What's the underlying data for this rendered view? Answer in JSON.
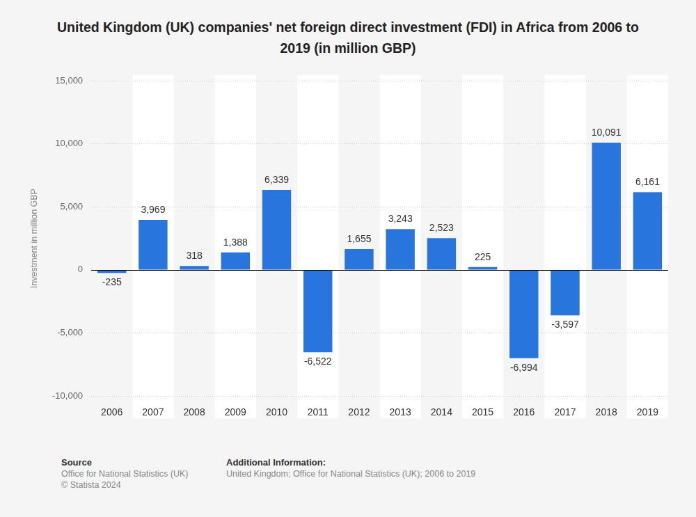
{
  "chart_data": {
    "type": "bar",
    "title": "United Kingdom (UK) companies' net foreign direct investment (FDI) in Africa from 2006 to 2019 (in million GBP)",
    "y_label": "Investment in million GBP",
    "categories": [
      "2006",
      "2007",
      "2008",
      "2009",
      "2010",
      "2011",
      "2012",
      "2013",
      "2014",
      "2015",
      "2016",
      "2017",
      "2018",
      "2019"
    ],
    "values": [
      -235,
      3969,
      318,
      1388,
      6339,
      -6522,
      1655,
      3243,
      2523,
      225,
      -6994,
      -3597,
      10091,
      6161
    ],
    "value_labels": [
      "-235",
      "3,969",
      "318",
      "1,388",
      "6,339",
      "-6,522",
      "1,655",
      "3,243",
      "2,523",
      "225",
      "-6,994",
      "-3,597",
      "10,091",
      "6,161"
    ],
    "color": "#2876dd",
    "ylim": [
      -10000,
      15000
    ],
    "yticks": [
      {
        "value": -10000,
        "label": "-10,000"
      },
      {
        "value": -5000,
        "label": "-5,000"
      },
      0,
      {
        "value": 5000,
        "label": "5,000"
      },
      {
        "value": 10000,
        "label": "10,000"
      },
      {
        "value": 15000,
        "label": "15,000"
      }
    ],
    "grid": true,
    "data_labels": true
  },
  "footer": {
    "source_heading": "Source",
    "source_lines": [
      "Office for National Statistics (UK)",
      "© Statista 2024"
    ],
    "info_heading": "Additional Information:",
    "info_lines": [
      "United Kingdom; Office for National Statistics (UK); 2006 to 2019"
    ]
  }
}
